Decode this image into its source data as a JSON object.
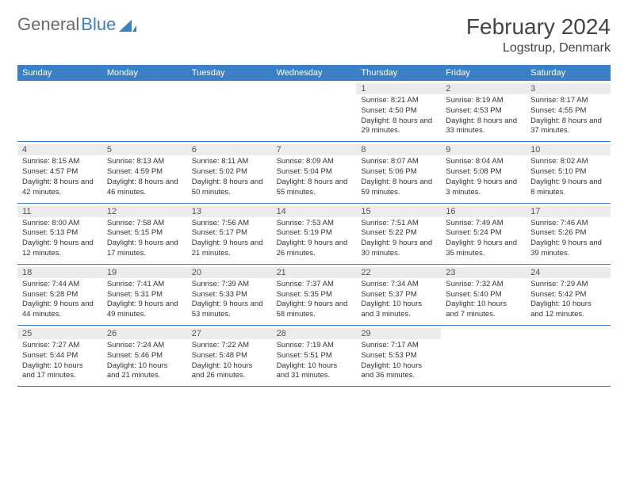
{
  "logo": {
    "text1": "General",
    "text2": "Blue"
  },
  "title": "February 2024",
  "location": "Logstrup, Denmark",
  "header_bg": "#3b7fc4",
  "row_border": "#3b7fc4",
  "daynum_bg": "#ececec",
  "weekdays": [
    "Sunday",
    "Monday",
    "Tuesday",
    "Wednesday",
    "Thursday",
    "Friday",
    "Saturday"
  ],
  "weeks": [
    [
      null,
      null,
      null,
      null,
      {
        "n": "1",
        "sr": "8:21 AM",
        "ss": "4:50 PM",
        "dl": "8 hours and 29 minutes."
      },
      {
        "n": "2",
        "sr": "8:19 AM",
        "ss": "4:53 PM",
        "dl": "8 hours and 33 minutes."
      },
      {
        "n": "3",
        "sr": "8:17 AM",
        "ss": "4:55 PM",
        "dl": "8 hours and 37 minutes."
      }
    ],
    [
      {
        "n": "4",
        "sr": "8:15 AM",
        "ss": "4:57 PM",
        "dl": "8 hours and 42 minutes."
      },
      {
        "n": "5",
        "sr": "8:13 AM",
        "ss": "4:59 PM",
        "dl": "8 hours and 46 minutes."
      },
      {
        "n": "6",
        "sr": "8:11 AM",
        "ss": "5:02 PM",
        "dl": "8 hours and 50 minutes."
      },
      {
        "n": "7",
        "sr": "8:09 AM",
        "ss": "5:04 PM",
        "dl": "8 hours and 55 minutes."
      },
      {
        "n": "8",
        "sr": "8:07 AM",
        "ss": "5:06 PM",
        "dl": "8 hours and 59 minutes."
      },
      {
        "n": "9",
        "sr": "8:04 AM",
        "ss": "5:08 PM",
        "dl": "9 hours and 3 minutes."
      },
      {
        "n": "10",
        "sr": "8:02 AM",
        "ss": "5:10 PM",
        "dl": "9 hours and 8 minutes."
      }
    ],
    [
      {
        "n": "11",
        "sr": "8:00 AM",
        "ss": "5:13 PM",
        "dl": "9 hours and 12 minutes."
      },
      {
        "n": "12",
        "sr": "7:58 AM",
        "ss": "5:15 PM",
        "dl": "9 hours and 17 minutes."
      },
      {
        "n": "13",
        "sr": "7:56 AM",
        "ss": "5:17 PM",
        "dl": "9 hours and 21 minutes."
      },
      {
        "n": "14",
        "sr": "7:53 AM",
        "ss": "5:19 PM",
        "dl": "9 hours and 26 minutes."
      },
      {
        "n": "15",
        "sr": "7:51 AM",
        "ss": "5:22 PM",
        "dl": "9 hours and 30 minutes."
      },
      {
        "n": "16",
        "sr": "7:49 AM",
        "ss": "5:24 PM",
        "dl": "9 hours and 35 minutes."
      },
      {
        "n": "17",
        "sr": "7:46 AM",
        "ss": "5:26 PM",
        "dl": "9 hours and 39 minutes."
      }
    ],
    [
      {
        "n": "18",
        "sr": "7:44 AM",
        "ss": "5:28 PM",
        "dl": "9 hours and 44 minutes."
      },
      {
        "n": "19",
        "sr": "7:41 AM",
        "ss": "5:31 PM",
        "dl": "9 hours and 49 minutes."
      },
      {
        "n": "20",
        "sr": "7:39 AM",
        "ss": "5:33 PM",
        "dl": "9 hours and 53 minutes."
      },
      {
        "n": "21",
        "sr": "7:37 AM",
        "ss": "5:35 PM",
        "dl": "9 hours and 58 minutes."
      },
      {
        "n": "22",
        "sr": "7:34 AM",
        "ss": "5:37 PM",
        "dl": "10 hours and 3 minutes."
      },
      {
        "n": "23",
        "sr": "7:32 AM",
        "ss": "5:40 PM",
        "dl": "10 hours and 7 minutes."
      },
      {
        "n": "24",
        "sr": "7:29 AM",
        "ss": "5:42 PM",
        "dl": "10 hours and 12 minutes."
      }
    ],
    [
      {
        "n": "25",
        "sr": "7:27 AM",
        "ss": "5:44 PM",
        "dl": "10 hours and 17 minutes."
      },
      {
        "n": "26",
        "sr": "7:24 AM",
        "ss": "5:46 PM",
        "dl": "10 hours and 21 minutes."
      },
      {
        "n": "27",
        "sr": "7:22 AM",
        "ss": "5:48 PM",
        "dl": "10 hours and 26 minutes."
      },
      {
        "n": "28",
        "sr": "7:19 AM",
        "ss": "5:51 PM",
        "dl": "10 hours and 31 minutes."
      },
      {
        "n": "29",
        "sr": "7:17 AM",
        "ss": "5:53 PM",
        "dl": "10 hours and 36 minutes."
      },
      null,
      null
    ]
  ],
  "labels": {
    "sunrise": "Sunrise: ",
    "sunset": "Sunset: ",
    "daylight": "Daylight: "
  }
}
